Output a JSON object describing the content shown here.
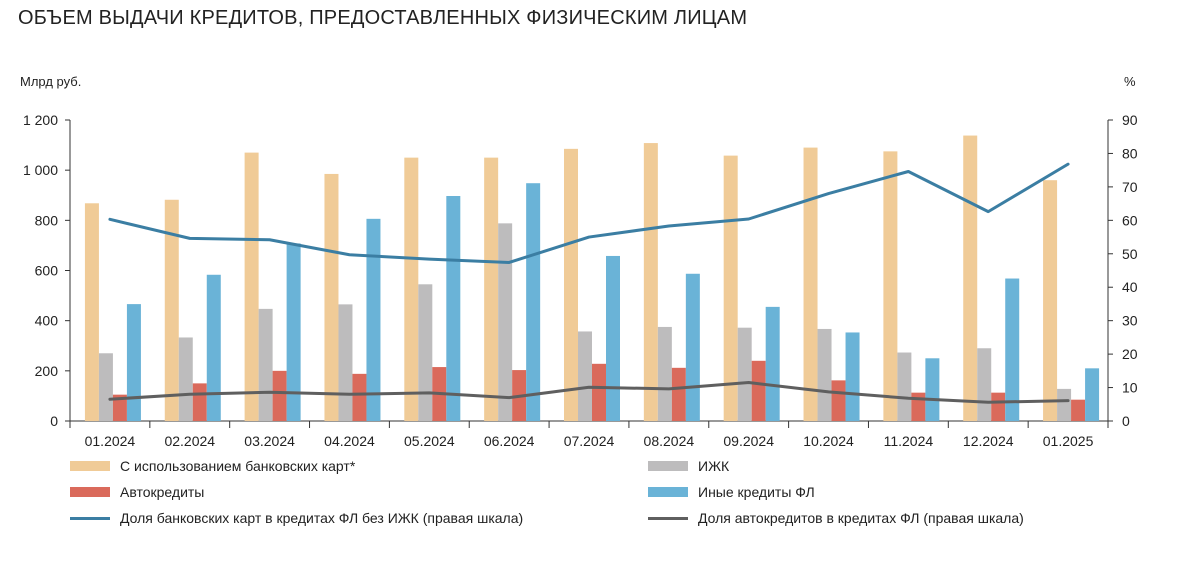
{
  "title": "ОБЪЕМ ВЫДАЧИ КРЕДИТОВ, ПРЕДОСТАВЛЕННЫХ ФИЗИЧЕСКИМ ЛИЦАМ",
  "left_unit": "Млрд руб.",
  "right_unit": "%",
  "chart_data": {
    "type": "bar",
    "categories": [
      "01.2024",
      "02.2024",
      "03.2024",
      "04.2024",
      "05.2024",
      "06.2024",
      "07.2024",
      "08.2024",
      "09.2024",
      "10.2024",
      "11.2024",
      "12.2024",
      "01.2025"
    ],
    "y_left": {
      "ylim": [
        0,
        1200
      ],
      "ticks": [
        0,
        200,
        400,
        600,
        800,
        1000,
        1200
      ],
      "tick_labels": [
        "0",
        "200",
        "400",
        "600",
        "800",
        "1 000",
        "1 200"
      ]
    },
    "y_right": {
      "ylim": [
        0,
        90
      ],
      "ticks": [
        0,
        10,
        20,
        30,
        40,
        50,
        60,
        70,
        80,
        90
      ],
      "tick_labels": [
        "0",
        "10",
        "20",
        "30",
        "40",
        "50",
        "60",
        "70",
        "80",
        "90"
      ]
    },
    "grid": false,
    "legend_position": "bottom",
    "series": [
      {
        "name": "С использованием банковских карт*",
        "type": "bar",
        "axis": "left",
        "color": "#F0CB97",
        "values": [
          868,
          882,
          1070,
          985,
          1050,
          1050,
          1085,
          1108,
          1058,
          1090,
          1075,
          1138,
          960
        ]
      },
      {
        "name": "ИЖК",
        "type": "bar",
        "axis": "left",
        "color": "#BDBCBD",
        "values": [
          270,
          333,
          447,
          465,
          545,
          788,
          357,
          375,
          372,
          367,
          273,
          290,
          128
        ]
      },
      {
        "name": "Автокредиты",
        "type": "bar",
        "axis": "left",
        "color": "#DA6A5B",
        "values": [
          105,
          150,
          200,
          188,
          215,
          203,
          228,
          212,
          240,
          162,
          113,
          113,
          85
        ]
      },
      {
        "name": "Иные кредиты ФЛ",
        "type": "bar",
        "axis": "left",
        "color": "#6AB3D7",
        "values": [
          466,
          583,
          708,
          806,
          897,
          948,
          658,
          587,
          455,
          353,
          250,
          568,
          210
        ]
      },
      {
        "name": "Доля банковских карт в кредитах ФЛ без ИЖК (правая шкала)",
        "type": "line",
        "axis": "right",
        "color": "#3B7EA3",
        "values": [
          60.3,
          54.6,
          54.2,
          49.7,
          48.4,
          47.4,
          55.0,
          58.3,
          60.4,
          68.0,
          74.6,
          62.6,
          76.8
        ]
      },
      {
        "name": "Доля автокредитов в кредитах ФЛ (правая шкала)",
        "type": "line",
        "axis": "right",
        "color": "#5F5F5F",
        "values": [
          6.5,
          8.0,
          8.6,
          8.0,
          8.4,
          7.0,
          10.1,
          9.6,
          11.5,
          8.7,
          6.8,
          5.6,
          6.1
        ]
      }
    ]
  }
}
